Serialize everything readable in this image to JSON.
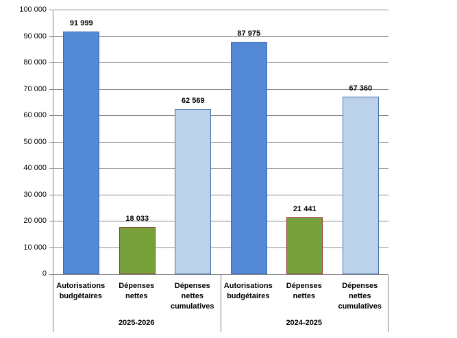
{
  "chart_data": {
    "type": "bar",
    "title": "",
    "xlabel": "",
    "ylabel": "",
    "ylim": [
      0,
      100000
    ],
    "ytick_interval": 10000,
    "ytick_labels": [
      "0",
      "10 000",
      "20 000",
      "30 000",
      "40 000",
      "50 000",
      "60 000",
      "70 000",
      "80 000",
      "90 000",
      "100 000"
    ],
    "grid": true,
    "legend": false,
    "categories_per_group": [
      "Autorisations budgétaires",
      "Dépenses nettes",
      "Dépenses nettes cumulatives"
    ],
    "groups": [
      {
        "label": "2025-2026",
        "bars": [
          {
            "category_lines": [
              "Autorisations",
              "budgétaires"
            ],
            "value": 91999,
            "value_label": "91 999",
            "style": "blue"
          },
          {
            "category_lines": [
              "Dépenses",
              "nettes"
            ],
            "value": 18033,
            "value_label": "18 033",
            "style": "green"
          },
          {
            "category_lines": [
              "Dépenses",
              "nettes",
              "cumulatives"
            ],
            "value": 62569,
            "value_label": "62 569",
            "style": "lightblue"
          }
        ]
      },
      {
        "label": "2024-2025",
        "bars": [
          {
            "category_lines": [
              "Autorisations",
              "budgétaires"
            ],
            "value": 87975,
            "value_label": "87 975",
            "style": "blue"
          },
          {
            "category_lines": [
              "Dépenses",
              "nettes"
            ],
            "value": 21441,
            "value_label": "21 441",
            "style": "green"
          },
          {
            "category_lines": [
              "Dépenses",
              "nettes",
              "cumulatives"
            ],
            "value": 67360,
            "value_label": "67 360",
            "style": "lightblue"
          }
        ]
      }
    ],
    "styles": {
      "blue": {
        "fill": "#5389D5",
        "border": "#3C6BAE"
      },
      "green": {
        "fill": "#77A03A",
        "border": "#8E3A34"
      },
      "lightblue": {
        "fill": "#BCD2EA",
        "border": "#4472A4"
      }
    },
    "colors": {
      "grid": "#868686",
      "axis": "#808080",
      "text": "#000000",
      "background": "#FFFFFF"
    }
  }
}
